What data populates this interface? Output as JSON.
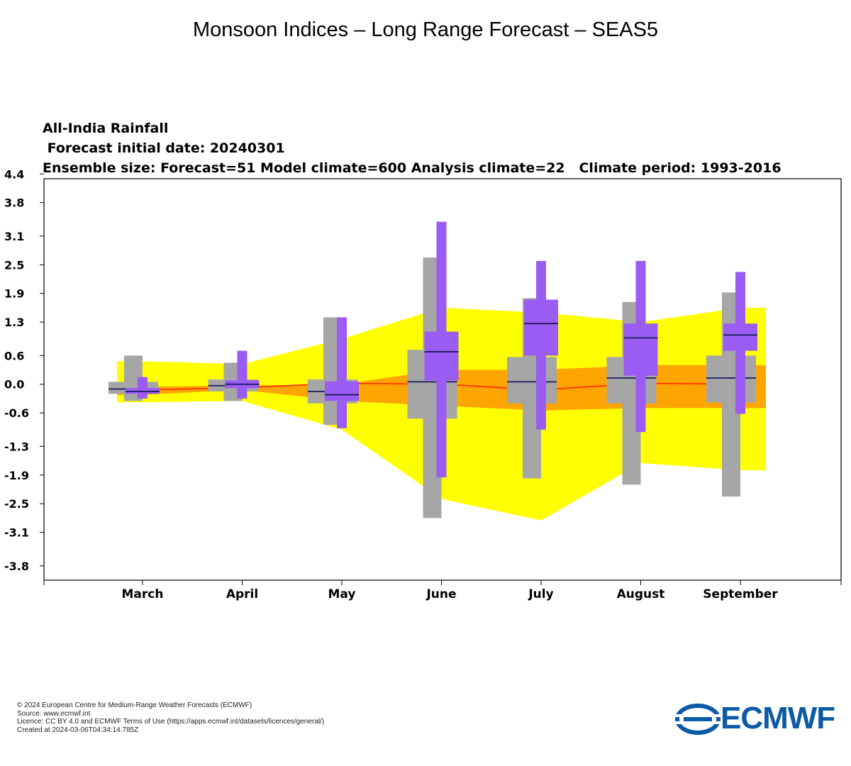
{
  "page": {
    "title": "Monsoon Indices – Long Range Forecast – SEAS5"
  },
  "header": {
    "line1": "All-India Rainfall",
    "line2": " Forecast initial date: 20240301",
    "line3": "Ensemble size: Forecast=51 Model climate=600 Analysis climate=22   Climate period: 1993-2016"
  },
  "chart_data": {
    "type": "box",
    "title": "All-India Rainfall",
    "categories": [
      "March",
      "April",
      "May",
      "June",
      "July",
      "August",
      "September"
    ],
    "yticks": [
      "4.4",
      "3.8",
      "3.1",
      "2.5",
      "1.9",
      "1.3",
      "0.6",
      "0.0",
      "-0.6",
      "-1.3",
      "-1.9",
      "-2.5",
      "-3.1",
      "-3.8"
    ],
    "ylim": [
      -4.1,
      4.3
    ],
    "grid": false,
    "analysis_climate_yellow_band": {
      "upper": [
        0.48,
        0.42,
        0.95,
        1.6,
        1.5,
        1.3,
        1.6
      ],
      "lower": [
        -0.38,
        -0.35,
        -0.95,
        -2.4,
        -2.85,
        -1.65,
        -1.8
      ]
    },
    "analysis_climate_orange_band": {
      "upper": [
        -0.05,
        -0.03,
        0.0,
        0.3,
        0.3,
        0.4,
        0.4
      ],
      "lower": [
        -0.22,
        -0.12,
        -0.35,
        -0.45,
        -0.55,
        -0.5,
        -0.5
      ]
    },
    "analysis_climate_median_line": [
      -0.12,
      -0.07,
      0.02,
      0.0,
      -0.12,
      0.02,
      0.0
    ],
    "model_climate": [
      {
        "min": -0.35,
        "q1": -0.2,
        "median": -0.1,
        "q3": 0.05,
        "max": 0.6
      },
      {
        "min": -0.35,
        "q1": -0.15,
        "median": -0.03,
        "q3": 0.1,
        "max": 0.45
      },
      {
        "min": -0.85,
        "q1": -0.4,
        "median": -0.15,
        "q3": 0.1,
        "max": 1.4
      },
      {
        "min": -2.8,
        "q1": -0.72,
        "median": 0.05,
        "q3": 0.72,
        "max": 2.65
      },
      {
        "min": -1.97,
        "q1": -0.4,
        "median": 0.05,
        "q3": 0.57,
        "max": 1.8
      },
      {
        "min": -2.1,
        "q1": -0.4,
        "median": 0.13,
        "q3": 0.57,
        "max": 1.72
      },
      {
        "min": -2.35,
        "q1": -0.38,
        "median": 0.13,
        "q3": 0.6,
        "max": 1.92
      }
    ],
    "forecast": [
      {
        "min": -0.3,
        "q1": -0.2,
        "median": -0.15,
        "q3": -0.08,
        "max": 0.15
      },
      {
        "min": -0.3,
        "q1": -0.08,
        "median": 0.0,
        "q3": 0.08,
        "max": 0.7
      },
      {
        "min": -0.92,
        "q1": -0.35,
        "median": -0.22,
        "q3": 0.06,
        "max": 1.4
      },
      {
        "min": -1.95,
        "q1": 0.08,
        "median": 0.68,
        "q3": 1.1,
        "max": 3.4
      },
      {
        "min": -0.95,
        "q1": 0.6,
        "median": 1.27,
        "q3": 1.77,
        "max": 2.58
      },
      {
        "min": -1.0,
        "q1": 0.18,
        "median": 0.97,
        "q3": 1.27,
        "max": 2.58
      },
      {
        "min": -0.62,
        "q1": 0.7,
        "median": 1.03,
        "q3": 1.27,
        "max": 2.35
      }
    ],
    "colors": {
      "yellow": "#ffff00",
      "orange": "#ffa500",
      "median_line": "#ff2a00",
      "model_climate": "#a6a6a6",
      "forecast": "#9a5cf2",
      "median_bar": "#1a1a5e"
    }
  },
  "footer": {
    "copyright": "© 2024 European Centre for Medium-Range Weather Forecasts (ECMWF)",
    "source": "Source: www.ecmwf.int",
    "licence": "Licence: CC BY 4.0 and ECMWF Terms of Use (https://apps.ecmwf.int/datasets/licences/general/)",
    "created": "Created at 2024-03-06T04:34:14.785Z"
  },
  "logo": {
    "text": "ECMWF",
    "color": "#0a5aa5"
  }
}
